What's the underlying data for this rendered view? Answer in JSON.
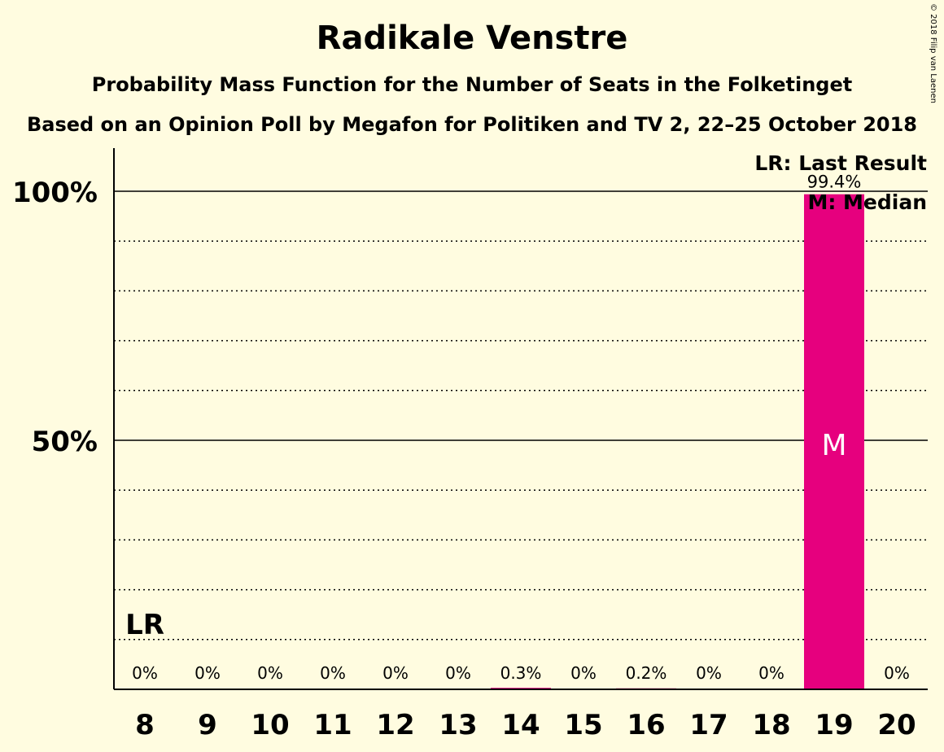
{
  "chart_data": {
    "type": "bar",
    "title": "Radikale Venstre",
    "subtitle": "Probability Mass Function for the Number of Seats in the Folketinget",
    "subtitle2": "Based on an Opinion Poll by Megafon for Politiken and TV 2, 22–25 October 2018",
    "copyright": "© 2018 Filip van Laenen",
    "categories": [
      "8",
      "9",
      "10",
      "11",
      "12",
      "13",
      "14",
      "15",
      "16",
      "17",
      "18",
      "19",
      "20"
    ],
    "values": [
      0,
      0,
      0,
      0,
      0,
      0,
      0.3,
      0,
      0.2,
      0,
      0,
      99.4,
      0
    ],
    "value_labels": [
      "0%",
      "0%",
      "0%",
      "0%",
      "0%",
      "0%",
      "0.3%",
      "0%",
      "0.2%",
      "0%",
      "0%",
      "99.4%",
      "0%"
    ],
    "ylim": [
      0,
      100
    ],
    "yticks": [
      {
        "value": 50,
        "label": "50%"
      },
      {
        "value": 100,
        "label": "100%"
      }
    ],
    "grid_minor_step": 10,
    "bar_color": "#E6007E",
    "last_result": {
      "category": "8",
      "label": "LR"
    },
    "median": {
      "category": "19",
      "label": "M"
    },
    "legend": [
      "LR: Last Result",
      "M: Median"
    ],
    "legend_position": "top-right"
  }
}
